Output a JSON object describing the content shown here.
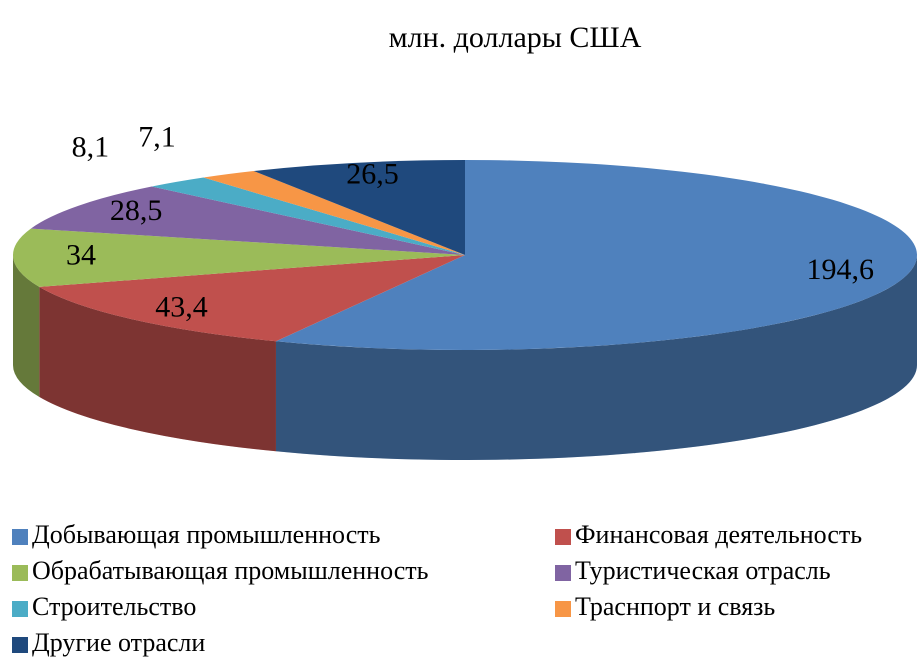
{
  "chart_data": {
    "type": "pie3d",
    "title": "млн. доллары США",
    "categories": [
      "Добывающая промышленность",
      "Финансовая деятельность",
      "Обрабатывающая промышленность",
      "Туристическая отрасль",
      "Строительство",
      "Траснпорт и связь",
      "Другие отрасли"
    ],
    "values": [
      194.6,
      43.4,
      34,
      28.5,
      8.1,
      7.1,
      26.5
    ],
    "value_labels": [
      "194,6",
      "43,4",
      "34",
      "28,5",
      "8,1",
      "7,1",
      "26,5"
    ],
    "colors": [
      "#4f81bd",
      "#c0504d",
      "#9bbb59",
      "#8064a2",
      "#4bacc6",
      "#f79646",
      "#1f497d"
    ],
    "legend": "bottom"
  }
}
